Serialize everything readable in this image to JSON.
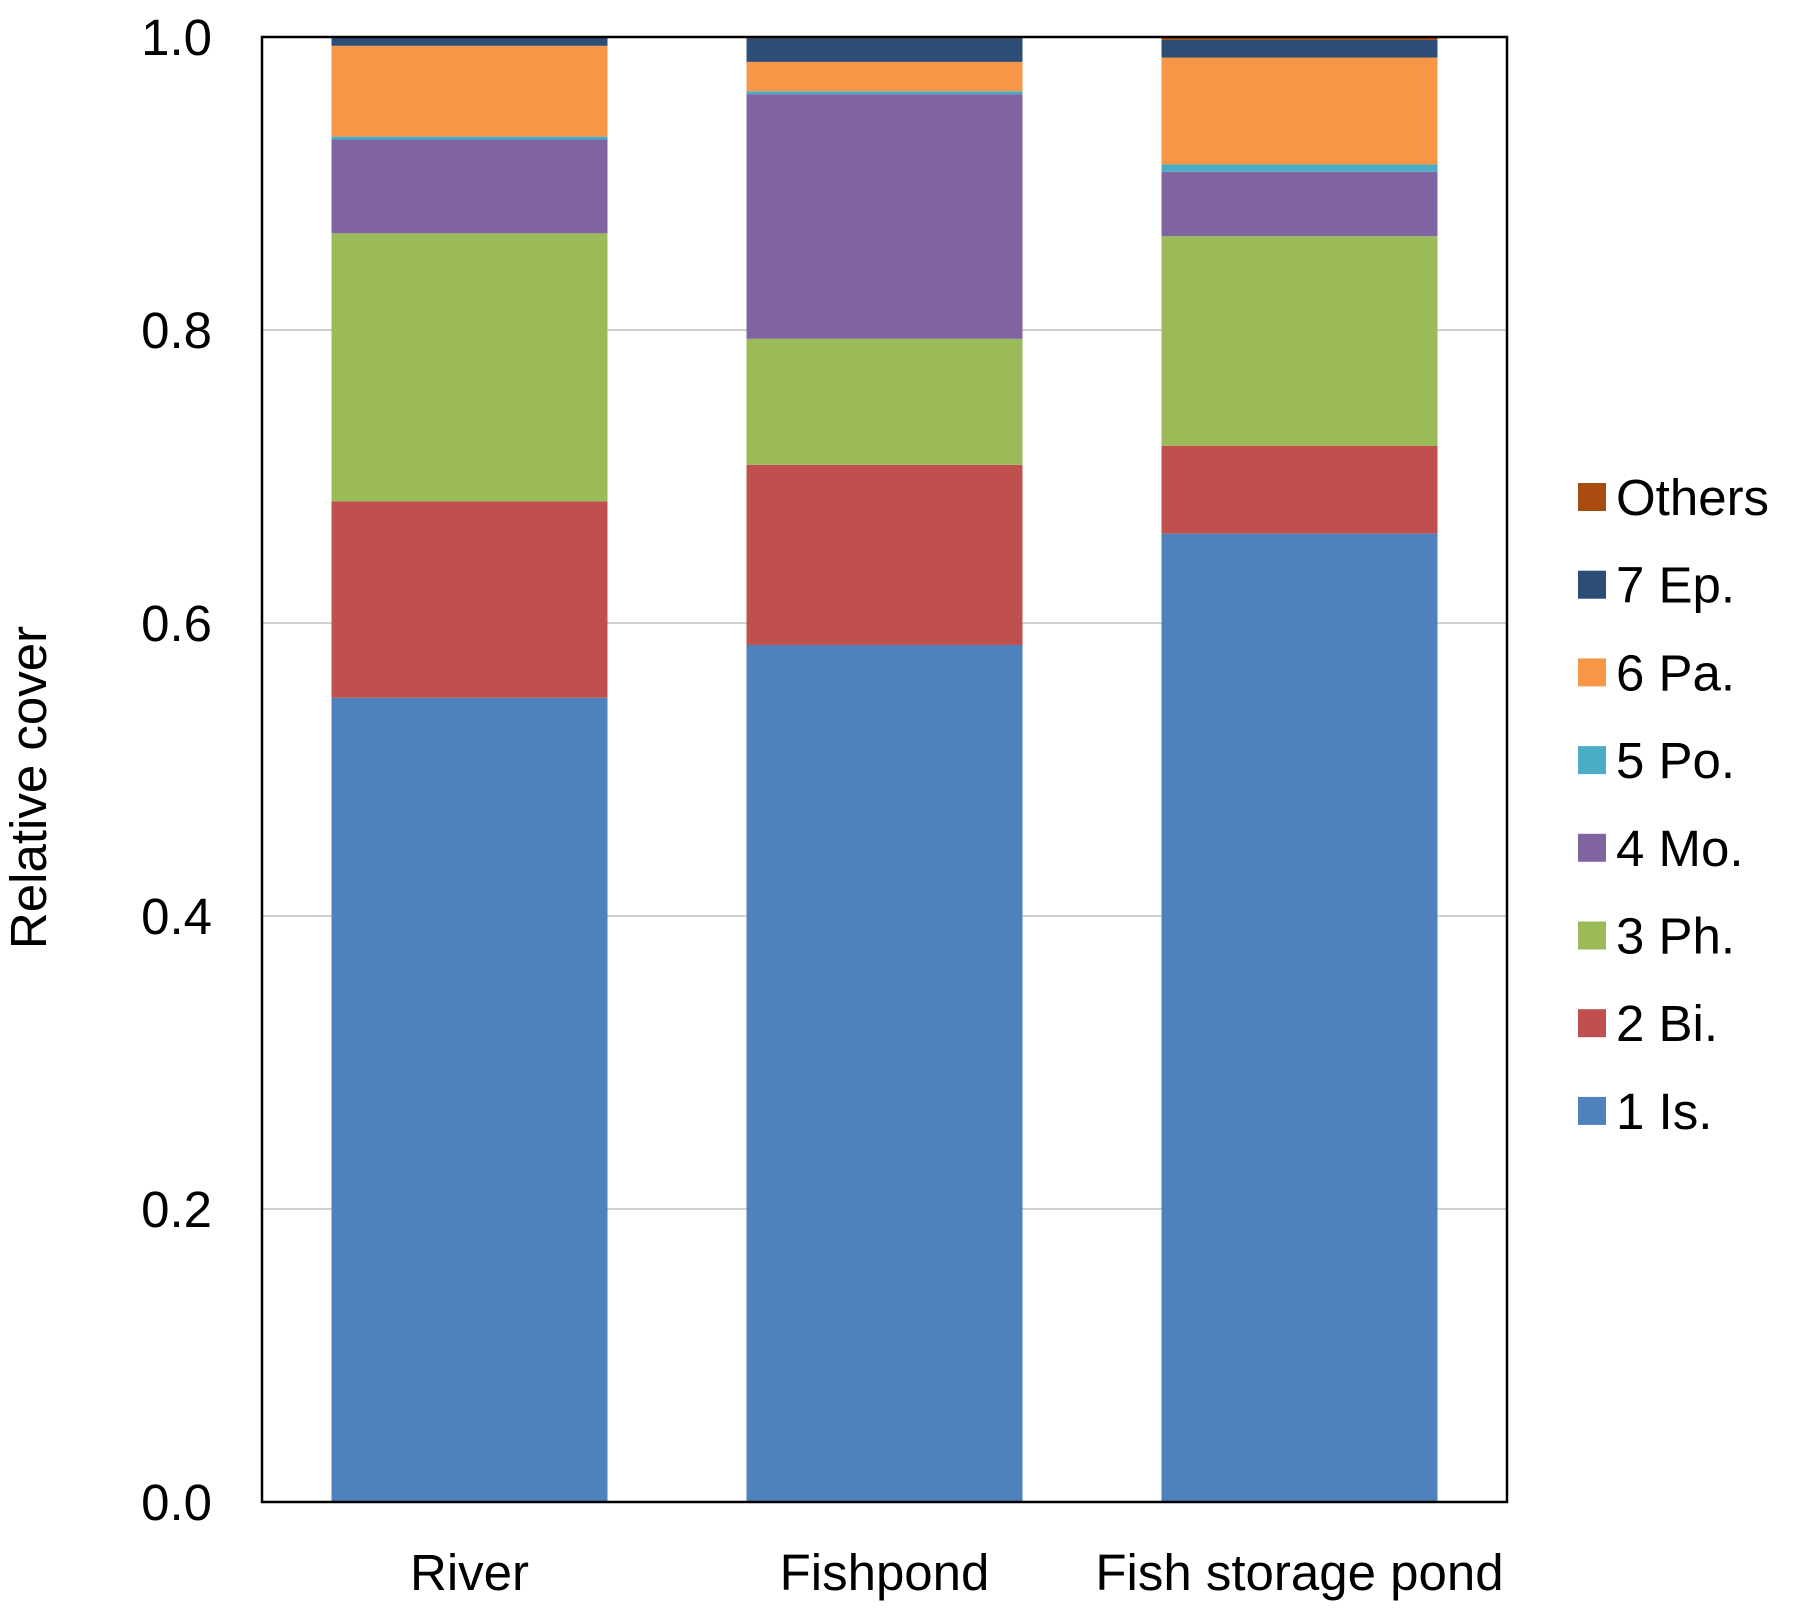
{
  "chart_data": {
    "type": "bar",
    "stacked": true,
    "title": "",
    "xlabel": "",
    "ylabel": "Relative cover",
    "ylim": [
      0,
      1.0
    ],
    "yticks": [
      0.0,
      0.2,
      0.4,
      0.6,
      0.8,
      1.0
    ],
    "ytick_labels": [
      "0.0",
      "0.2",
      "0.4",
      "0.6",
      "0.8",
      "1.0"
    ],
    "grid": "horizontal",
    "legend_position": "right",
    "categories": [
      "River",
      "Fishpond",
      "Fish storage pond"
    ],
    "series": [
      {
        "name": "1 Is.",
        "color": "#4f81bd",
        "values": [
          0.549,
          0.585,
          0.661
        ]
      },
      {
        "name": "2 Bi.",
        "color": "#c0504d",
        "values": [
          0.134,
          0.123,
          0.06
        ]
      },
      {
        "name": "3 Ph.",
        "color": "#9bbb59",
        "values": [
          0.183,
          0.086,
          0.143
        ]
      },
      {
        "name": "4 Mo.",
        "color": "#8064a2",
        "values": [
          0.064,
          0.167,
          0.044
        ]
      },
      {
        "name": "5 Po.",
        "color": "#4bacc6",
        "values": [
          0.002,
          0.002,
          0.005
        ]
      },
      {
        "name": "6 Pa.",
        "color": "#f79646",
        "values": [
          0.062,
          0.02,
          0.073
        ]
      },
      {
        "name": "7 Ep.",
        "color": "#2c4d75",
        "values": [
          0.006,
          0.016,
          0.012
        ]
      },
      {
        "name": "Others",
        "color": "#a94c12",
        "values": [
          0.0,
          0.001,
          0.002
        ]
      }
    ]
  }
}
